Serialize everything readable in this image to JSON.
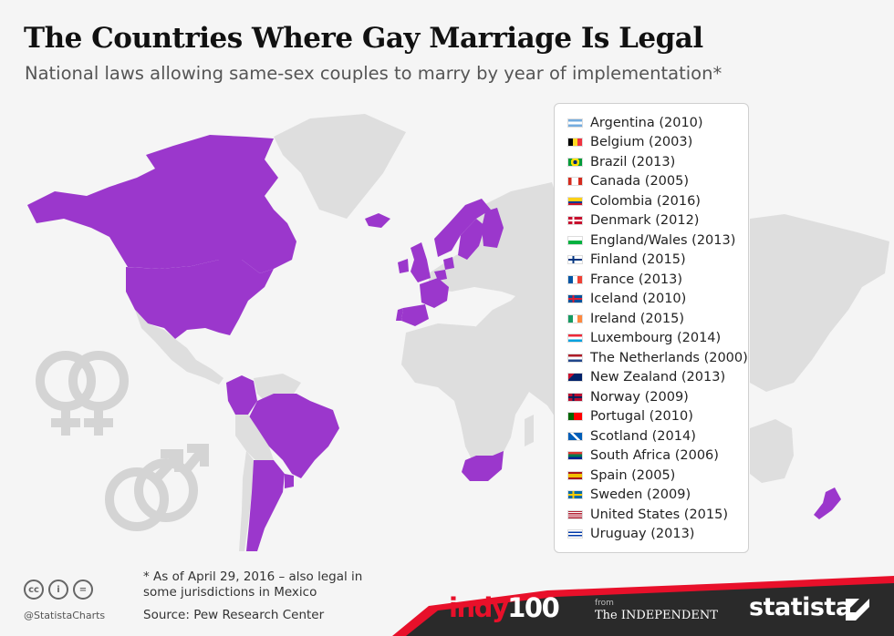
{
  "header": {
    "title": "The Countries Where Gay Marriage Is Legal",
    "subtitle": "National laws allowing same-sex couples to marry by year of implementation*"
  },
  "colors": {
    "legal": "#9b37cc",
    "land": "#dedede",
    "background": "#f5f5f5",
    "band": "#2a2a2a",
    "accent_red": "#e8102a"
  },
  "legend": {
    "items": [
      {
        "label": "Argentina (2010)",
        "flag": "argentina"
      },
      {
        "label": "Belgium (2003)",
        "flag": "belgium"
      },
      {
        "label": "Brazil (2013)",
        "flag": "brazil"
      },
      {
        "label": "Canada (2005)",
        "flag": "canada"
      },
      {
        "label": "Colombia (2016)",
        "flag": "colombia"
      },
      {
        "label": "Denmark (2012)",
        "flag": "denmark"
      },
      {
        "label": "England/Wales (2013)",
        "flag": "wales"
      },
      {
        "label": "Finland (2015)",
        "flag": "finland"
      },
      {
        "label": "France (2013)",
        "flag": "france"
      },
      {
        "label": "Iceland (2010)",
        "flag": "iceland"
      },
      {
        "label": "Ireland (2015)",
        "flag": "ireland"
      },
      {
        "label": "Luxembourg (2014)",
        "flag": "luxembourg"
      },
      {
        "label": "The Netherlands (2000)",
        "flag": "netherlands"
      },
      {
        "label": "New Zealand (2013)",
        "flag": "new-zealand"
      },
      {
        "label": "Norway (2009)",
        "flag": "norway"
      },
      {
        "label": "Portugal (2010)",
        "flag": "portugal"
      },
      {
        "label": "Scotland (2014)",
        "flag": "scotland"
      },
      {
        "label": "South Africa (2006)",
        "flag": "south-africa"
      },
      {
        "label": "Spain (2005)",
        "flag": "spain"
      },
      {
        "label": "Sweden (2009)",
        "flag": "sweden"
      },
      {
        "label": "United States (2015)",
        "flag": "united-states"
      },
      {
        "label": "Uruguay (2013)",
        "flag": "uruguay"
      }
    ]
  },
  "footer": {
    "footnote": "* As of April 29, 2016 – also legal in some jurisdictions in Mexico",
    "source": "Source: Pew Research Center",
    "handle": "@StatistaCharts",
    "cc_icons": [
      "cc",
      "by",
      "nd"
    ],
    "brand_indy_a": "indy",
    "brand_indy_b": "100",
    "from_label": "from",
    "independent_label": "The INDEPENDENT",
    "statista_label": "statista"
  },
  "icons": [
    "female-symbols-icon",
    "male-symbols-icon",
    "statista-logo-icon"
  ]
}
